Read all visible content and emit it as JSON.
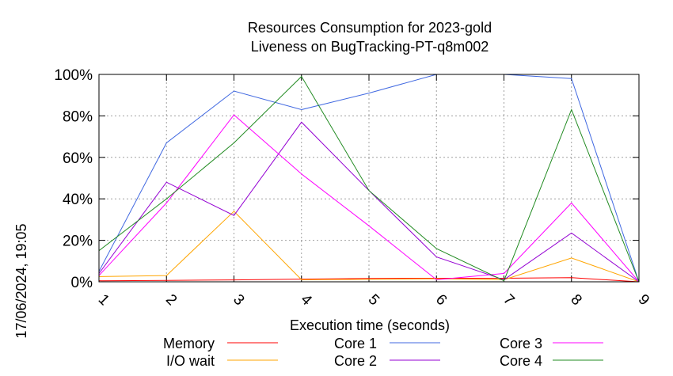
{
  "chart_data": {
    "type": "line",
    "title": "Resources Consumption for 2023-gold",
    "subtitle": "Liveness on BugTracking-PT-q8m002",
    "xlabel": "Execution time (seconds)",
    "ylabel": "",
    "side_label": "17/06/2024, 19:05",
    "x": [
      1,
      2,
      3,
      4,
      5,
      6,
      7,
      8,
      9
    ],
    "xlim": [
      1,
      9
    ],
    "ylim": [
      0,
      100
    ],
    "y_ticks": [
      "0%",
      "20%",
      "40%",
      "60%",
      "80%",
      "100%"
    ],
    "x_ticks": [
      "1",
      "2",
      "3",
      "4",
      "5",
      "6",
      "7",
      "8",
      "9"
    ],
    "grid": true,
    "legend_position": "bottom",
    "series": [
      {
        "name": "Memory",
        "color": "#ff0000",
        "values": [
          0.5,
          0.7,
          0.9,
          1.3,
          1.6,
          1.7,
          1.7,
          2.0,
          0
        ]
      },
      {
        "name": "I/O wait",
        "color": "#ffa500",
        "values": [
          2.5,
          3.0,
          34,
          1.0,
          1.2,
          1.5,
          1.0,
          11.5,
          0
        ]
      },
      {
        "name": "Core 1",
        "color": "#4169e1",
        "values": [
          5,
          67,
          92,
          83,
          91,
          100,
          100,
          98,
          0
        ]
      },
      {
        "name": "Core 2",
        "color": "#9400d3",
        "values": [
          4,
          48,
          32,
          77,
          44,
          12,
          1,
          23.5,
          0
        ]
      },
      {
        "name": "Core 3",
        "color": "#ff00ff",
        "values": [
          3,
          38,
          80.5,
          52,
          27,
          1,
          4,
          38,
          0
        ]
      },
      {
        "name": "Core 4",
        "color": "#228b22",
        "values": [
          15,
          40,
          67,
          99,
          44,
          16,
          0.5,
          83,
          0
        ]
      }
    ]
  }
}
